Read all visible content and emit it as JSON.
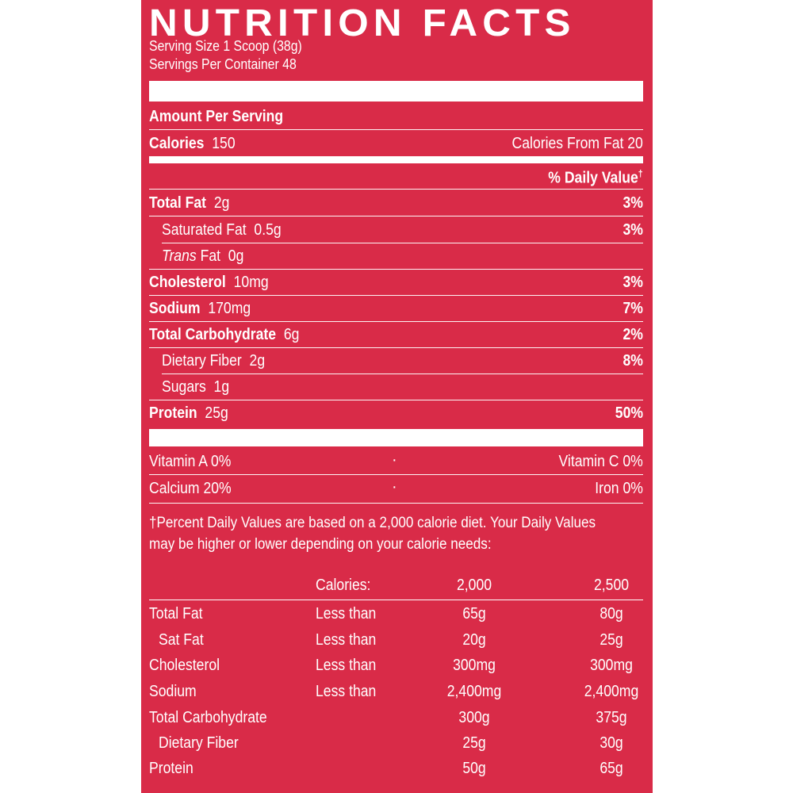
{
  "title": "NUTRITION FACTS",
  "serving_size": "Serving Size 1 Scoop (38g)",
  "servings_per_container": "Servings Per Container 48",
  "amount_per_serving": "Amount Per Serving",
  "calories_label": "Calories",
  "calories_value": "150",
  "calories_from_fat": "Calories From Fat 20",
  "daily_value_header": "% Daily Value",
  "daily_value_mark": "†",
  "nutrients": [
    {
      "name": "Total Fat",
      "amount": "2g",
      "dv": "3%"
    },
    {
      "name": "Saturated Fat",
      "amount": "0.5g",
      "dv": "3%"
    },
    {
      "name_italic": "Trans",
      "name": "Fat",
      "amount": "0g",
      "dv": ""
    },
    {
      "name": "Cholesterol",
      "amount": "10mg",
      "dv": "3%"
    },
    {
      "name": "Sodium",
      "amount": "170mg",
      "dv": "7%"
    },
    {
      "name": "Total Carbohydrate",
      "amount": "6g",
      "dv": "2%"
    },
    {
      "name": "Dietary Fiber",
      "amount": "2g",
      "dv": "8%"
    },
    {
      "name": "Sugars",
      "amount": "1g",
      "dv": ""
    },
    {
      "name": "Protein",
      "amount": "25g",
      "dv": "50%"
    }
  ],
  "vitamins": [
    {
      "left": "Vitamin A  0%",
      "sep": "·",
      "right": "Vitamin C  0%"
    },
    {
      "left": "Calcium  20%",
      "sep": "·",
      "right": "Iron  0%"
    }
  ],
  "footnote_line1": "†Percent Daily Values are based on a 2,000 calorie diet. Your Daily Values",
  "footnote_line2": "may be higher or lower depending on your calorie needs:",
  "ref_table": {
    "header": {
      "label": "Calories:",
      "col1": "2,000",
      "col2": "2,500"
    },
    "rows": [
      {
        "name": "Total Fat",
        "qual": "Less than",
        "col1": "65g",
        "col2": "80g"
      },
      {
        "name": "Sat Fat",
        "qual": "Less than",
        "col1": "20g",
        "col2": "25g"
      },
      {
        "name": "Cholesterol",
        "qual": "Less than",
        "col1": "300mg",
        "col2": "300mg"
      },
      {
        "name": "Sodium",
        "qual": "Less than",
        "col1": "2,400mg",
        "col2": "2,400mg"
      },
      {
        "name": "Total Carbohydrate",
        "qual": "",
        "col1": "300g",
        "col2": "375g"
      },
      {
        "name": "Dietary Fiber",
        "qual": "",
        "col1": "25g",
        "col2": "30g"
      },
      {
        "name": "Protein",
        "qual": "",
        "col1": "50g",
        "col2": "65g"
      }
    ]
  },
  "colors": {
    "background": "#d92b48",
    "text": "#ffffff"
  }
}
